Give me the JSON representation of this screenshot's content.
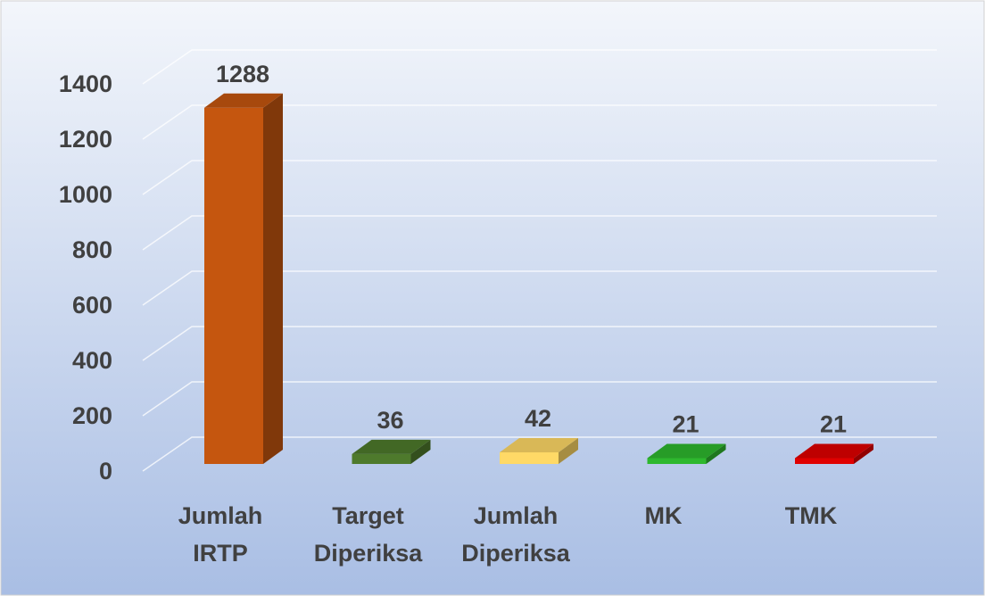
{
  "chart_data": {
    "type": "bar3d",
    "categories": [
      "Jumlah IRTP",
      "Target Diperiksa",
      "Jumlah Diperiksa",
      "MK",
      "TMK"
    ],
    "values": [
      1288,
      36,
      42,
      21,
      21
    ],
    "colors": [
      "#c5560f",
      "#4e7a2c",
      "#ffd966",
      "#2eb82e",
      "#e00000"
    ],
    "ylim": [
      0,
      1400
    ],
    "yticks": [
      0,
      200,
      400,
      600,
      800,
      1000,
      1200,
      1400
    ],
    "grid": true
  }
}
